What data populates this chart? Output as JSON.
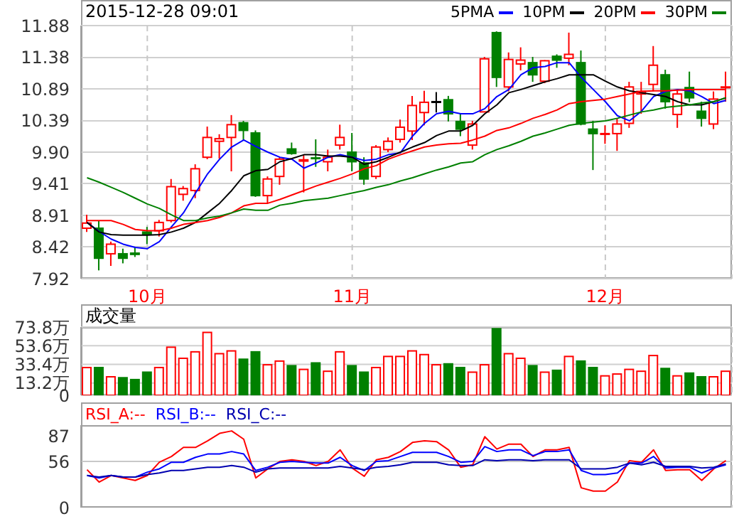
{
  "chart_data": [
    {
      "type": "candlestick",
      "title": "2015-12-28 09:01",
      "categories": [
        null,
        null,
        null,
        null,
        null,
        "10月",
        null,
        null,
        null,
        null,
        null,
        null,
        null,
        null,
        null,
        null,
        null,
        null,
        null,
        null,
        null,
        null,
        "11月",
        null,
        null,
        null,
        null,
        null,
        null,
        null,
        null,
        null,
        null,
        null,
        null,
        null,
        null,
        null,
        null,
        null,
        null,
        null,
        null,
        "12月",
        null,
        null,
        null,
        null,
        null,
        null,
        null,
        null,
        null,
        null
      ],
      "ohlc": [
        [
          8.71,
          8.92,
          8.65,
          8.79
        ],
        [
          8.71,
          8.83,
          8.05,
          8.24
        ],
        [
          8.31,
          8.5,
          8.12,
          8.46
        ],
        [
          8.31,
          8.39,
          8.16,
          8.24
        ],
        [
          8.32,
          8.41,
          8.26,
          8.3
        ],
        [
          8.65,
          8.73,
          8.46,
          8.61
        ],
        [
          8.67,
          8.84,
          8.58,
          8.8
        ],
        [
          8.83,
          9.48,
          8.8,
          9.36
        ],
        [
          9.24,
          9.37,
          9.14,
          9.33
        ],
        [
          9.3,
          9.71,
          9.18,
          9.64
        ],
        [
          9.82,
          10.3,
          9.79,
          10.13
        ],
        [
          10.07,
          10.18,
          9.8,
          10.11
        ],
        [
          10.13,
          10.48,
          9.6,
          10.33
        ],
        [
          10.36,
          10.39,
          10.09,
          10.24
        ],
        [
          10.2,
          10.24,
          9.2,
          9.22
        ],
        [
          9.22,
          9.52,
          9.11,
          9.48
        ],
        [
          9.52,
          9.82,
          9.39,
          9.79
        ],
        [
          9.95,
          10.05,
          9.86,
          9.88
        ],
        [
          9.76,
          9.86,
          9.27,
          9.78
        ],
        [
          9.81,
          10.1,
          9.67,
          9.8
        ],
        [
          9.75,
          9.94,
          9.6,
          9.82
        ],
        [
          10.01,
          10.33,
          9.94,
          10.13
        ],
        [
          9.9,
          10.2,
          9.6,
          9.75
        ],
        [
          9.73,
          9.82,
          9.39,
          9.48
        ],
        [
          9.52,
          10.01,
          9.48,
          9.98
        ],
        [
          9.94,
          10.13,
          9.9,
          10.07
        ],
        [
          10.1,
          10.41,
          10.05,
          10.29
        ],
        [
          10.23,
          10.78,
          10.09,
          10.63
        ],
        [
          10.52,
          10.86,
          10.32,
          10.68
        ],
        [
          10.69,
          10.84,
          10.52,
          10.69
        ],
        [
          10.72,
          10.78,
          10.38,
          10.5
        ],
        [
          10.38,
          10.5,
          10.15,
          10.26
        ],
        [
          10.01,
          10.39,
          9.94,
          10.34
        ],
        [
          10.53,
          11.39,
          10.53,
          11.36
        ],
        [
          11.77,
          11.79,
          10.92,
          11.07
        ],
        [
          10.92,
          11.46,
          10.85,
          11.35
        ],
        [
          11.28,
          11.54,
          11.18,
          11.34
        ],
        [
          11.3,
          11.39,
          11.0,
          11.11
        ],
        [
          11.01,
          11.34,
          10.98,
          11.33
        ],
        [
          11.4,
          11.43,
          11.22,
          11.34
        ],
        [
          11.37,
          11.77,
          11.26,
          11.43
        ],
        [
          11.3,
          11.49,
          10.32,
          10.34
        ],
        [
          10.26,
          10.39,
          9.62,
          10.19
        ],
        [
          10.18,
          10.32,
          10.03,
          10.19
        ],
        [
          10.19,
          10.43,
          9.92,
          10.34
        ],
        [
          10.35,
          11.0,
          10.28,
          10.92
        ],
        [
          10.81,
          11.0,
          10.5,
          10.85
        ],
        [
          10.96,
          11.56,
          10.85,
          11.26
        ],
        [
          11.11,
          11.19,
          10.58,
          10.69
        ],
        [
          10.49,
          10.88,
          10.28,
          10.81
        ],
        [
          10.91,
          11.16,
          10.68,
          10.75
        ],
        [
          10.54,
          10.69,
          10.3,
          10.43
        ],
        [
          10.34,
          10.85,
          10.26,
          10.73
        ],
        [
          10.91,
          11.16,
          10.69,
          10.92
        ]
      ],
      "colors": [
        "#ff0000",
        "#008000",
        "#ff0000",
        "#008000",
        "#008000",
        "#008000",
        "#ff0000",
        "#ff0000",
        "#ff0000",
        "#ff0000",
        "#ff0000",
        "#ff0000",
        "#ff0000",
        "#008000",
        "#008000",
        "#ff0000",
        "#ff0000",
        "#008000",
        "#ff0000",
        "#008000",
        "#ff0000",
        "#ff0000",
        "#008000",
        "#008000",
        "#ff0000",
        "#ff0000",
        "#ff0000",
        "#ff0000",
        "#ff0000",
        "#000000",
        "#008000",
        "#008000",
        "#ff0000",
        "#ff0000",
        "#008000",
        "#ff0000",
        "#ff0000",
        "#008000",
        "#ff0000",
        "#008000",
        "#ff0000",
        "#008000",
        "#008000",
        "#ff0000",
        "#ff0000",
        "#ff0000",
        "#ff0000",
        "#ff0000",
        "#008000",
        "#ff0000",
        "#008000",
        "#008000",
        "#ff0000",
        "#ff0000"
      ],
      "series": [
        {
          "name": "5PMA",
          "type": "line",
          "color": "#0000ff",
          "values": [
            8.8,
            8.66,
            8.54,
            8.46,
            8.41,
            8.39,
            8.5,
            8.73,
            8.95,
            9.26,
            9.56,
            9.79,
            9.98,
            10.09,
            9.99,
            9.9,
            9.82,
            9.79,
            9.65,
            9.73,
            9.82,
            9.86,
            9.82,
            9.77,
            9.79,
            9.86,
            9.89,
            10.15,
            10.35,
            10.5,
            10.54,
            10.5,
            10.5,
            10.58,
            10.77,
            10.88,
            11.11,
            11.22,
            11.24,
            11.3,
            11.3,
            11.07,
            10.88,
            10.69,
            10.47,
            10.39,
            10.54,
            10.77,
            10.85,
            10.88,
            10.86,
            10.77,
            10.66,
            10.71
          ]
        },
        {
          "name": "10PM",
          "type": "line",
          "color": "#000000",
          "values": [
            8.8,
            8.65,
            8.61,
            8.6,
            8.6,
            8.6,
            8.61,
            8.65,
            8.71,
            8.8,
            8.95,
            9.1,
            9.3,
            9.53,
            9.61,
            9.63,
            9.75,
            9.8,
            9.86,
            9.86,
            9.84,
            9.84,
            9.82,
            9.71,
            9.75,
            9.82,
            9.9,
            9.98,
            10.05,
            10.16,
            10.23,
            10.23,
            10.32,
            10.5,
            10.64,
            10.83,
            10.88,
            10.94,
            11.0,
            11.05,
            11.11,
            11.11,
            11.11,
            11.01,
            10.92,
            10.86,
            10.83,
            10.8,
            10.77,
            10.69,
            10.64,
            10.64,
            10.69,
            10.75
          ]
        },
        {
          "name": "20PM",
          "type": "line",
          "color": "#ff0000",
          "values": [
            8.83,
            8.83,
            8.83,
            8.77,
            8.69,
            8.67,
            8.67,
            8.71,
            8.77,
            8.8,
            8.83,
            8.88,
            8.95,
            9.06,
            9.1,
            9.1,
            9.16,
            9.23,
            9.3,
            9.37,
            9.43,
            9.49,
            9.56,
            9.64,
            9.69,
            9.79,
            9.86,
            9.92,
            9.98,
            10.01,
            10.03,
            10.04,
            10.09,
            10.15,
            10.24,
            10.28,
            10.35,
            10.43,
            10.49,
            10.56,
            10.66,
            10.69,
            10.71,
            10.73,
            10.77,
            10.81,
            10.85,
            10.86,
            10.86,
            10.87,
            10.88,
            10.88,
            10.88,
            10.88
          ]
        },
        {
          "name": "30PM",
          "type": "line",
          "color": "#008000",
          "values": [
            9.5,
            9.43,
            9.35,
            9.27,
            9.18,
            9.09,
            9.02,
            8.92,
            8.83,
            8.83,
            8.87,
            8.9,
            8.95,
            9.01,
            8.99,
            8.99,
            9.07,
            9.1,
            9.14,
            9.16,
            9.18,
            9.22,
            9.26,
            9.3,
            9.35,
            9.39,
            9.45,
            9.5,
            9.56,
            9.62,
            9.67,
            9.73,
            9.75,
            9.86,
            9.94,
            10.0,
            10.07,
            10.15,
            10.2,
            10.26,
            10.32,
            10.35,
            10.37,
            10.39,
            10.43,
            10.48,
            10.53,
            10.56,
            10.6,
            10.62,
            10.64,
            10.67,
            10.69,
            10.75
          ]
        }
      ],
      "ylim": [
        7.92,
        11.88
      ],
      "yticks": [
        7.92,
        8.42,
        8.91,
        9.41,
        {
          "value": 9.9,
          "label": "9.90"
        },
        10.39,
        10.89,
        11.38,
        11.88
      ],
      "grid": true,
      "legend": "top right"
    },
    {
      "type": "bar",
      "title": "成交量",
      "categories": [
        null,
        null,
        null,
        null,
        null,
        null,
        null,
        null,
        null,
        null,
        null,
        null,
        null,
        null,
        null,
        null,
        null,
        null,
        null,
        null,
        null,
        null,
        null,
        null,
        null,
        null,
        null,
        null,
        null,
        null,
        null,
        null,
        null,
        null,
        null,
        null,
        null,
        null,
        null,
        null,
        null,
        null,
        null,
        null,
        null,
        null,
        null,
        null,
        null,
        null,
        null,
        null,
        null,
        null
      ],
      "values": [
        30,
        30,
        20,
        19,
        17,
        25,
        30,
        52,
        40,
        47,
        68,
        45,
        48,
        39,
        47,
        33,
        37,
        32,
        28,
        35,
        26,
        47,
        32,
        25,
        30,
        42,
        42,
        48,
        44,
        33,
        34,
        30,
        25,
        33,
        72,
        45,
        40,
        32,
        25,
        27,
        42,
        37,
        30,
        21,
        23,
        28,
        26,
        43,
        29,
        21,
        24,
        20,
        20,
        26
      ],
      "colors": [
        "#ff0000",
        "#008000",
        "#ff0000",
        "#008000",
        "#008000",
        "#008000",
        "#ff0000",
        "#ff0000",
        "#ff0000",
        "#ff0000",
        "#ff0000",
        "#ff0000",
        "#ff0000",
        "#008000",
        "#008000",
        "#ff0000",
        "#ff0000",
        "#008000",
        "#ff0000",
        "#008000",
        "#ff0000",
        "#ff0000",
        "#008000",
        "#008000",
        "#ff0000",
        "#ff0000",
        "#ff0000",
        "#ff0000",
        "#ff0000",
        "#ff0000",
        "#008000",
        "#008000",
        "#ff0000",
        "#ff0000",
        "#008000",
        "#ff0000",
        "#ff0000",
        "#008000",
        "#ff0000",
        "#008000",
        "#ff0000",
        "#008000",
        "#008000",
        "#ff0000",
        "#ff0000",
        "#ff0000",
        "#ff0000",
        "#ff0000",
        "#008000",
        "#ff0000",
        "#008000",
        "#008000",
        "#ff0000",
        "#ff0000"
      ],
      "ylim": [
        0,
        73.8
      ],
      "yticks": [
        0,
        {
          "value": 13.2,
          "label": "13.2万"
        },
        {
          "value": 33.4,
          "label": "33.4万"
        },
        {
          "value": 53.6,
          "label": "53.6万"
        },
        {
          "value": 73.8,
          "label": "73.8万"
        }
      ],
      "grid": true,
      "tick_labels": "y"
    },
    {
      "type": "line",
      "categories": [
        null,
        null,
        null,
        null,
        null,
        null,
        null,
        null,
        null,
        null,
        null,
        null,
        null,
        null,
        null,
        null,
        null,
        null,
        null,
        null,
        null,
        null,
        null,
        null,
        null,
        null,
        null,
        null,
        null,
        null,
        null,
        null,
        null,
        null,
        null,
        null,
        null,
        null,
        null,
        null,
        null,
        null,
        null,
        null,
        null,
        null,
        null,
        null,
        null,
        null,
        null,
        null,
        null,
        null
      ],
      "series": [
        {
          "name": "RSI_A:--",
          "color": "#ff0000",
          "values": [
            46,
            31,
            39,
            36,
            33,
            39,
            55,
            62,
            73,
            73,
            81,
            90,
            93,
            83,
            36,
            47,
            56,
            58,
            56,
            51,
            56,
            70,
            48,
            38,
            58,
            61,
            68,
            79,
            81,
            80,
            70,
            49,
            52,
            86,
            71,
            77,
            77,
            62,
            70,
            70,
            73,
            24,
            20,
            20,
            31,
            57,
            55,
            70,
            45,
            46,
            46,
            33,
            47,
            57
          ]
        },
        {
          "name": "RSI_B:--",
          "color": "#0000ff",
          "values": [
            39,
            36,
            39,
            37,
            37,
            43,
            47,
            55,
            55,
            61,
            65,
            65,
            68,
            65,
            45,
            49,
            55,
            56,
            55,
            54,
            54,
            61,
            51,
            45,
            56,
            57,
            62,
            67,
            67,
            67,
            62,
            55,
            56,
            74,
            68,
            70,
            70,
            63,
            68,
            68,
            70,
            45,
            40,
            40,
            42,
            54,
            54,
            62,
            48,
            49,
            49,
            42,
            48,
            52
          ]
        },
        {
          "name": "RSI_C:--",
          "color": "#0000b0",
          "values": [
            39,
            37,
            39,
            37,
            37,
            40,
            42,
            45,
            45,
            47,
            49,
            49,
            51,
            49,
            43,
            47,
            48,
            48,
            48,
            48,
            48,
            50,
            48,
            46,
            49,
            50,
            52,
            55,
            55,
            55,
            52,
            51,
            51,
            58,
            57,
            58,
            58,
            57,
            58,
            58,
            58,
            47,
            47,
            47,
            49,
            54,
            52,
            55,
            50,
            50,
            50,
            48,
            49,
            53
          ]
        }
      ],
      "ylim": [
        0,
        100
      ],
      "yticks": [
        0,
        56,
        87
      ],
      "grid": "x",
      "ref_lines": [
        {
          "axis": "y",
          "value": 56,
          "color": "#c8c8c8"
        }
      ],
      "legend": "top left",
      "tick_labels": "y"
    }
  ]
}
